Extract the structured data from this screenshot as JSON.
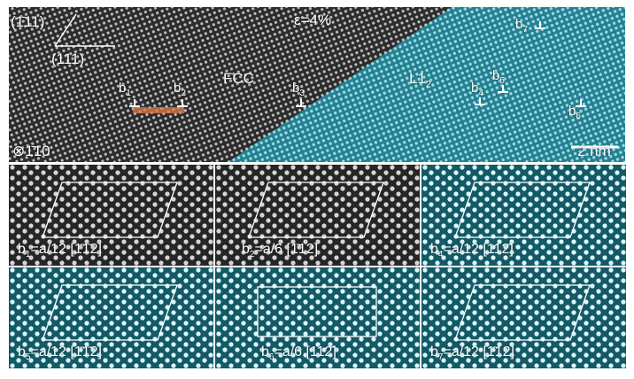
{
  "colors": {
    "fcc_background": "#2c2c2c",
    "l12_overlay": "#2aa3b8",
    "stacking_fault": "#e07a4a",
    "frame": "#ffffff"
  },
  "top": {
    "plane_a": "(1̄11)",
    "plane_b": "(111)",
    "strain": "ε=4%",
    "fcc_label": "FCC",
    "l12_label_main": "L1",
    "l12_label_sub": "2",
    "zone_axis_symbol": "⊗",
    "zone_axis": "1̄10",
    "scale_bar": "2 nm",
    "dislocations": [
      {
        "main": "b",
        "sub": "1"
      },
      {
        "main": "b",
        "sub": "2"
      },
      {
        "main": "b",
        "sub": "3"
      },
      {
        "main": "b",
        "sub": "4"
      },
      {
        "main": "b",
        "sub": "5"
      },
      {
        "main": "b",
        "sub": "6"
      },
      {
        "main": "b",
        "sub": "7"
      }
    ]
  },
  "panels": [
    {
      "b": "b",
      "sub": "1",
      "eq": "=a/12 [1̄1̄2]",
      "tone": "gray"
    },
    {
      "b": "b",
      "sub": "2",
      "eq": "=a/6 [1̄12]",
      "tone": "gray"
    },
    {
      "b": "b",
      "sub": "4",
      "eq": "=a/12 [112̄]",
      "tone": "cyan"
    },
    {
      "b": "b",
      "sub": "5",
      "eq": "=a/12 [1̄1̄2]",
      "tone": "cyan"
    },
    {
      "b": "b",
      "sub": "6",
      "eq": "=a/6 [112̄]",
      "tone": "cyan"
    },
    {
      "b": "b",
      "sub": "7",
      "eq": "=a/12 [1̄12]",
      "tone": "cyan"
    }
  ]
}
